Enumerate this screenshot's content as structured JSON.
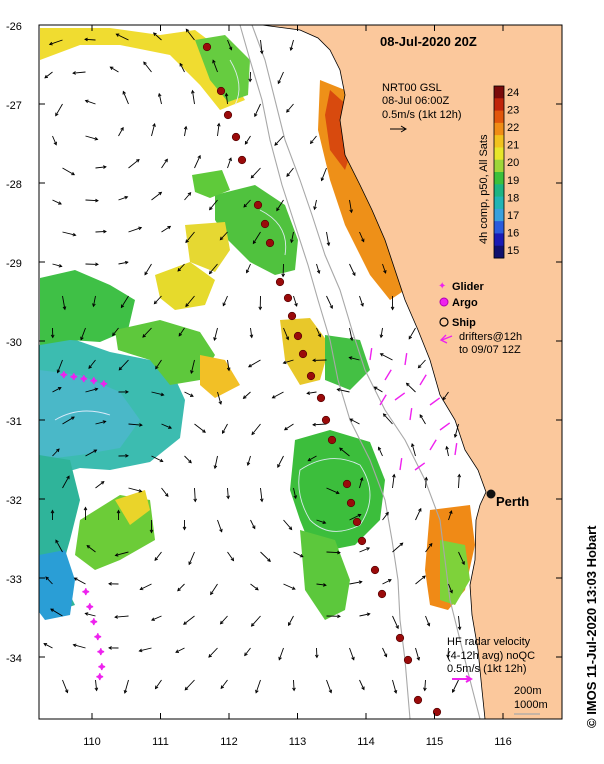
{
  "map": {
    "title": "08-Jul-2020 20Z",
    "product": {
      "line1": "NRT00 GSL",
      "line2": "08-Jul 06:00Z",
      "line3": "0.5m/s (1kt 12h)"
    },
    "colorbar": {
      "label": "4h comp, p50, All Sats",
      "ticks": [
        "24",
        "23",
        "22",
        "21",
        "20",
        "19",
        "18",
        "17",
        "16",
        "15"
      ],
      "colors": [
        "#7a0a0a",
        "#c0240a",
        "#e2560c",
        "#f08c16",
        "#f2c21e",
        "#e8e62a",
        "#9ed638",
        "#3cc03c",
        "#1eb482",
        "#22b4b4",
        "#3aa0dc",
        "#2a5adc",
        "#1a1ab4",
        "#10106e"
      ]
    },
    "latitude_ticks": [
      "-26",
      "-27",
      "-28",
      "-29",
      "-30",
      "-31",
      "-32",
      "-33",
      "-34"
    ],
    "longitude_ticks": [
      "110",
      "111",
      "112",
      "113",
      "114",
      "115",
      "116"
    ],
    "legend": {
      "glider": "Glider",
      "argo": "Argo",
      "ship": "Ship",
      "drifters_line1": "drifters@12h",
      "drifters_line2": "to 09/07 12Z"
    },
    "city": "Perth",
    "hf_radar": {
      "line1": "HF radar velocity",
      "line2": "(4-12h avg) noQC",
      "line3": "0.5m/s (1kt 12h)"
    },
    "isobaths": {
      "line1": "200m",
      "line2": "1000m"
    },
    "credit": "©  IMOS 11-Jul-2020 13:03 Hobart",
    "colors": {
      "land": "#fbc89c",
      "ship_track": "#9a0a0a",
      "drifters": "#ee22ee",
      "isobath": "#a8a8a8"
    }
  }
}
